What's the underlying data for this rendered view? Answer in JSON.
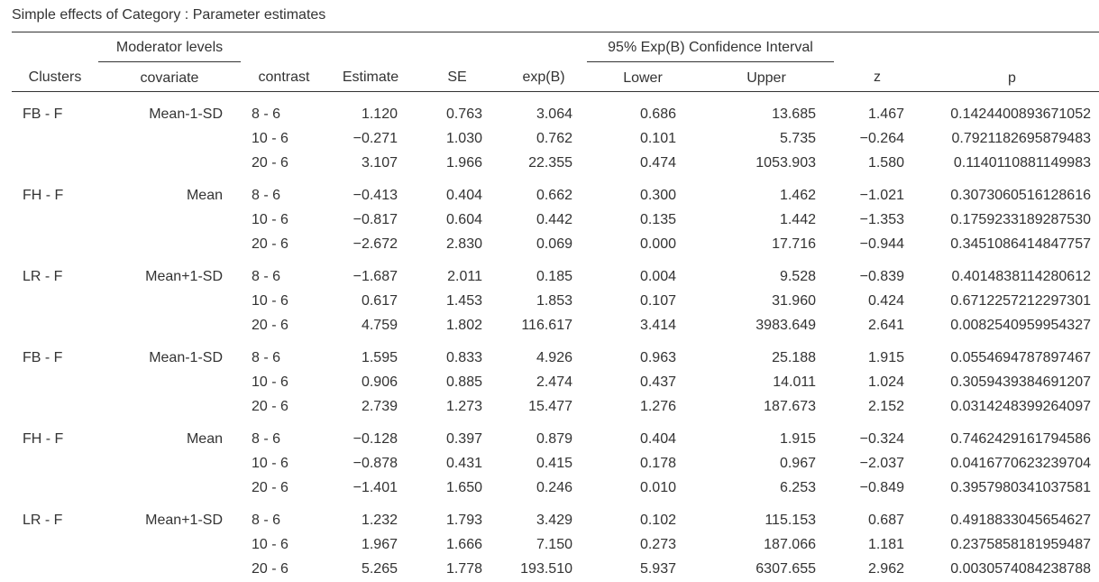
{
  "title": "Simple effects of Category : Parameter estimates",
  "header": {
    "moderator_levels": "Moderator levels",
    "confidence_interval": "95% Exp(B) Confidence Interval",
    "columns": {
      "clusters": "Clusters",
      "covariate": "covariate",
      "contrast": "contrast",
      "estimate": "Estimate",
      "se": "SE",
      "expb": "exp(B)",
      "lower": "Lower",
      "upper": "Upper",
      "z": "z",
      "p": "p"
    }
  },
  "groups": [
    {
      "cluster": "FB - F",
      "covariate": "Mean-1-SD",
      "rows": [
        {
          "contrast": "8 - 6",
          "estimate": "1.120",
          "se": "0.763",
          "expb": "3.064",
          "lower": "0.686",
          "upper": "13.685",
          "z": "1.467",
          "p": "0.1424400893671052"
        },
        {
          "contrast": "10 - 6",
          "estimate": "−0.271",
          "se": "1.030",
          "expb": "0.762",
          "lower": "0.101",
          "upper": "5.735",
          "z": "−0.264",
          "p": "0.7921182695879483"
        },
        {
          "contrast": "20 - 6",
          "estimate": "3.107",
          "se": "1.966",
          "expb": "22.355",
          "lower": "0.474",
          "upper": "1053.903",
          "z": "1.580",
          "p": "0.1140110881149983"
        }
      ]
    },
    {
      "cluster": "FH - F",
      "covariate": "Mean",
      "rows": [
        {
          "contrast": "8 - 6",
          "estimate": "−0.413",
          "se": "0.404",
          "expb": "0.662",
          "lower": "0.300",
          "upper": "1.462",
          "z": "−1.021",
          "p": "0.3073060516128616"
        },
        {
          "contrast": "10 - 6",
          "estimate": "−0.817",
          "se": "0.604",
          "expb": "0.442",
          "lower": "0.135",
          "upper": "1.442",
          "z": "−1.353",
          "p": "0.1759233189287530"
        },
        {
          "contrast": "20 - 6",
          "estimate": "−2.672",
          "se": "2.830",
          "expb": "0.069",
          "lower": "0.000",
          "upper": "17.716",
          "z": "−0.944",
          "p": "0.3451086414847757"
        }
      ]
    },
    {
      "cluster": "LR - F",
      "covariate": "Mean+1-SD",
      "rows": [
        {
          "contrast": "8 - 6",
          "estimate": "−1.687",
          "se": "2.011",
          "expb": "0.185",
          "lower": "0.004",
          "upper": "9.528",
          "z": "−0.839",
          "p": "0.4014838114280612"
        },
        {
          "contrast": "10 - 6",
          "estimate": "0.617",
          "se": "1.453",
          "expb": "1.853",
          "lower": "0.107",
          "upper": "31.960",
          "z": "0.424",
          "p": "0.6712257212297301"
        },
        {
          "contrast": "20 - 6",
          "estimate": "4.759",
          "se": "1.802",
          "expb": "116.617",
          "lower": "3.414",
          "upper": "3983.649",
          "z": "2.641",
          "p": "0.0082540959954327"
        }
      ]
    },
    {
      "cluster": "FB - F",
      "covariate": "Mean-1-SD",
      "rows": [
        {
          "contrast": "8 - 6",
          "estimate": "1.595",
          "se": "0.833",
          "expb": "4.926",
          "lower": "0.963",
          "upper": "25.188",
          "z": "1.915",
          "p": "0.0554694787897467"
        },
        {
          "contrast": "10 - 6",
          "estimate": "0.906",
          "se": "0.885",
          "expb": "2.474",
          "lower": "0.437",
          "upper": "14.011",
          "z": "1.024",
          "p": "0.3059439384691207"
        },
        {
          "contrast": "20 - 6",
          "estimate": "2.739",
          "se": "1.273",
          "expb": "15.477",
          "lower": "1.276",
          "upper": "187.673",
          "z": "2.152",
          "p": "0.0314248399264097"
        }
      ]
    },
    {
      "cluster": "FH - F",
      "covariate": "Mean",
      "rows": [
        {
          "contrast": "8 - 6",
          "estimate": "−0.128",
          "se": "0.397",
          "expb": "0.879",
          "lower": "0.404",
          "upper": "1.915",
          "z": "−0.324",
          "p": "0.7462429161794586"
        },
        {
          "contrast": "10 - 6",
          "estimate": "−0.878",
          "se": "0.431",
          "expb": "0.415",
          "lower": "0.178",
          "upper": "0.967",
          "z": "−2.037",
          "p": "0.0416770623239704"
        },
        {
          "contrast": "20 - 6",
          "estimate": "−1.401",
          "se": "1.650",
          "expb": "0.246",
          "lower": "0.010",
          "upper": "6.253",
          "z": "−0.849",
          "p": "0.3957980341037581"
        }
      ]
    },
    {
      "cluster": "LR - F",
      "covariate": "Mean+1-SD",
      "rows": [
        {
          "contrast": "8 - 6",
          "estimate": "1.232",
          "se": "1.793",
          "expb": "3.429",
          "lower": "0.102",
          "upper": "115.153",
          "z": "0.687",
          "p": "0.4918833045654627"
        },
        {
          "contrast": "10 - 6",
          "estimate": "1.967",
          "se": "1.666",
          "expb": "7.150",
          "lower": "0.273",
          "upper": "187.066",
          "z": "1.181",
          "p": "0.2375858181959487"
        },
        {
          "contrast": "20 - 6",
          "estimate": "5.265",
          "se": "1.778",
          "expb": "193.510",
          "lower": "5.937",
          "upper": "6307.655",
          "z": "2.962",
          "p": "0.0030574084238788"
        }
      ]
    }
  ]
}
